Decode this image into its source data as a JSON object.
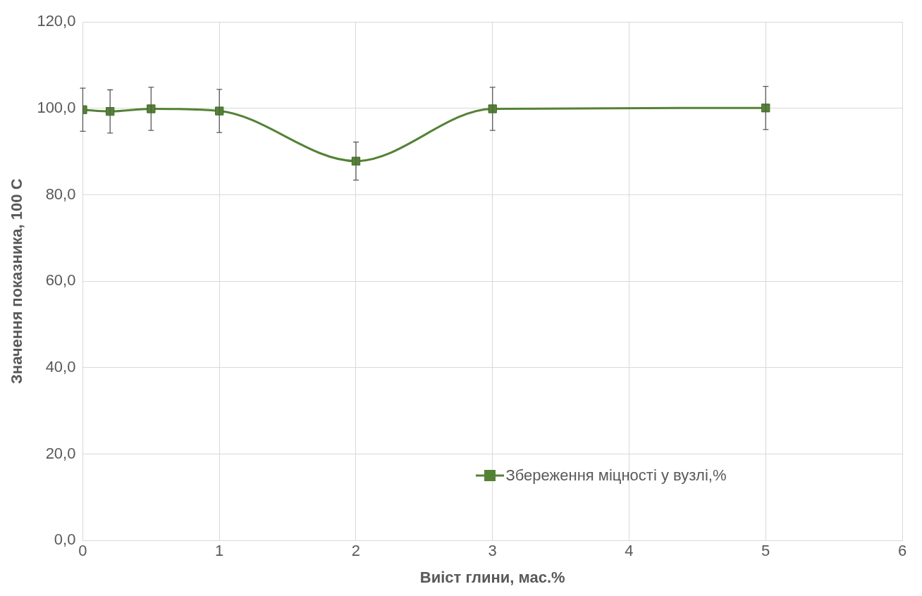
{
  "chart_data": {
    "type": "line",
    "xlabel": "Виіст глини, мас.%",
    "ylabel": "Значення показника, 100 С",
    "x": [
      0,
      0.2,
      0.5,
      1,
      2,
      3,
      5
    ],
    "series": [
      {
        "name": "Збереження міцності у вузлі,%",
        "color": "#548235",
        "values": [
          99.7,
          99.3,
          99.9,
          99.4,
          87.8,
          99.9,
          100.1
        ],
        "errors": [
          5,
          5,
          5,
          5,
          4.4,
          5,
          5
        ]
      }
    ],
    "xlim": [
      0,
      6
    ],
    "xticks": [
      0,
      1,
      2,
      3,
      4,
      5,
      6
    ],
    "ylim": [
      0,
      120
    ],
    "yticks": [
      {
        "value": 0,
        "label": "0,0"
      },
      {
        "value": 20,
        "label": "20,0"
      },
      {
        "value": 40,
        "label": "40,0"
      },
      {
        "value": 60,
        "label": "60,0"
      },
      {
        "value": 80,
        "label": "80,0"
      },
      {
        "value": 100,
        "label": "100,0"
      },
      {
        "value": 120,
        "label": "120,0"
      }
    ],
    "grid": true,
    "legend": "bottom right",
    "marker": "square",
    "line_style": "solid"
  }
}
